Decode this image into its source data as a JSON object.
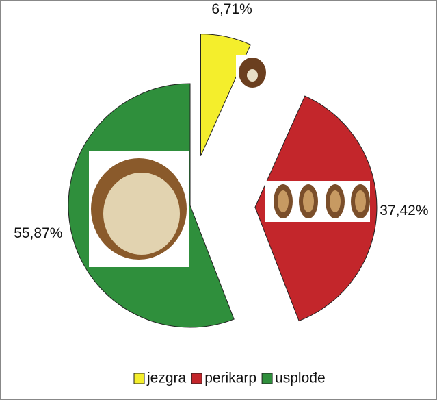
{
  "chart_data": {
    "type": "pie",
    "categories": [
      "jezgra",
      "perikarp",
      "usplođe"
    ],
    "values": [
      6.71,
      37.42,
      55.87
    ],
    "value_labels": [
      "6,71%",
      "37,42%",
      "55,87%"
    ],
    "colors": [
      "#f4ee2c",
      "#c3262b",
      "#2f8f3c"
    ],
    "legend": "bottom"
  }
}
